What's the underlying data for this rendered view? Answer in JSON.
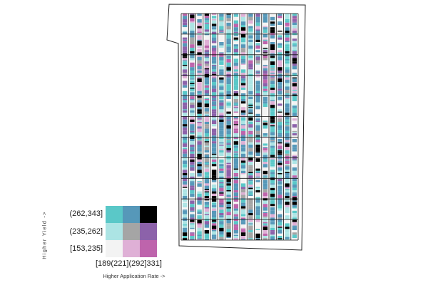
{
  "legend": {
    "y_label": "Higher Yield ->",
    "x_label": "Higher Application Rate ->",
    "y_ticks": [
      "(262,343]",
      "(235,262]",
      "[153,235]"
    ],
    "x_ticks": "[189(221](292]331]",
    "colors": [
      [
        "#5ac8c8",
        "#5698b9",
        "#000000"
      ],
      [
        "#ace4e4",
        "#a5a5a5",
        "#8c62aa"
      ],
      [
        "#f3f3f3",
        "#dfb0d6",
        "#be64ac"
      ]
    ]
  },
  "map": {
    "palette": [
      "#5ac8c8",
      "#5698b9",
      "#000000",
      "#ace4e4",
      "#a5a5a5",
      "#8c62aa",
      "#f3f3f3",
      "#dfb0d6",
      "#be64ac"
    ],
    "strip_columns": 16,
    "grid_rows": 11
  }
}
